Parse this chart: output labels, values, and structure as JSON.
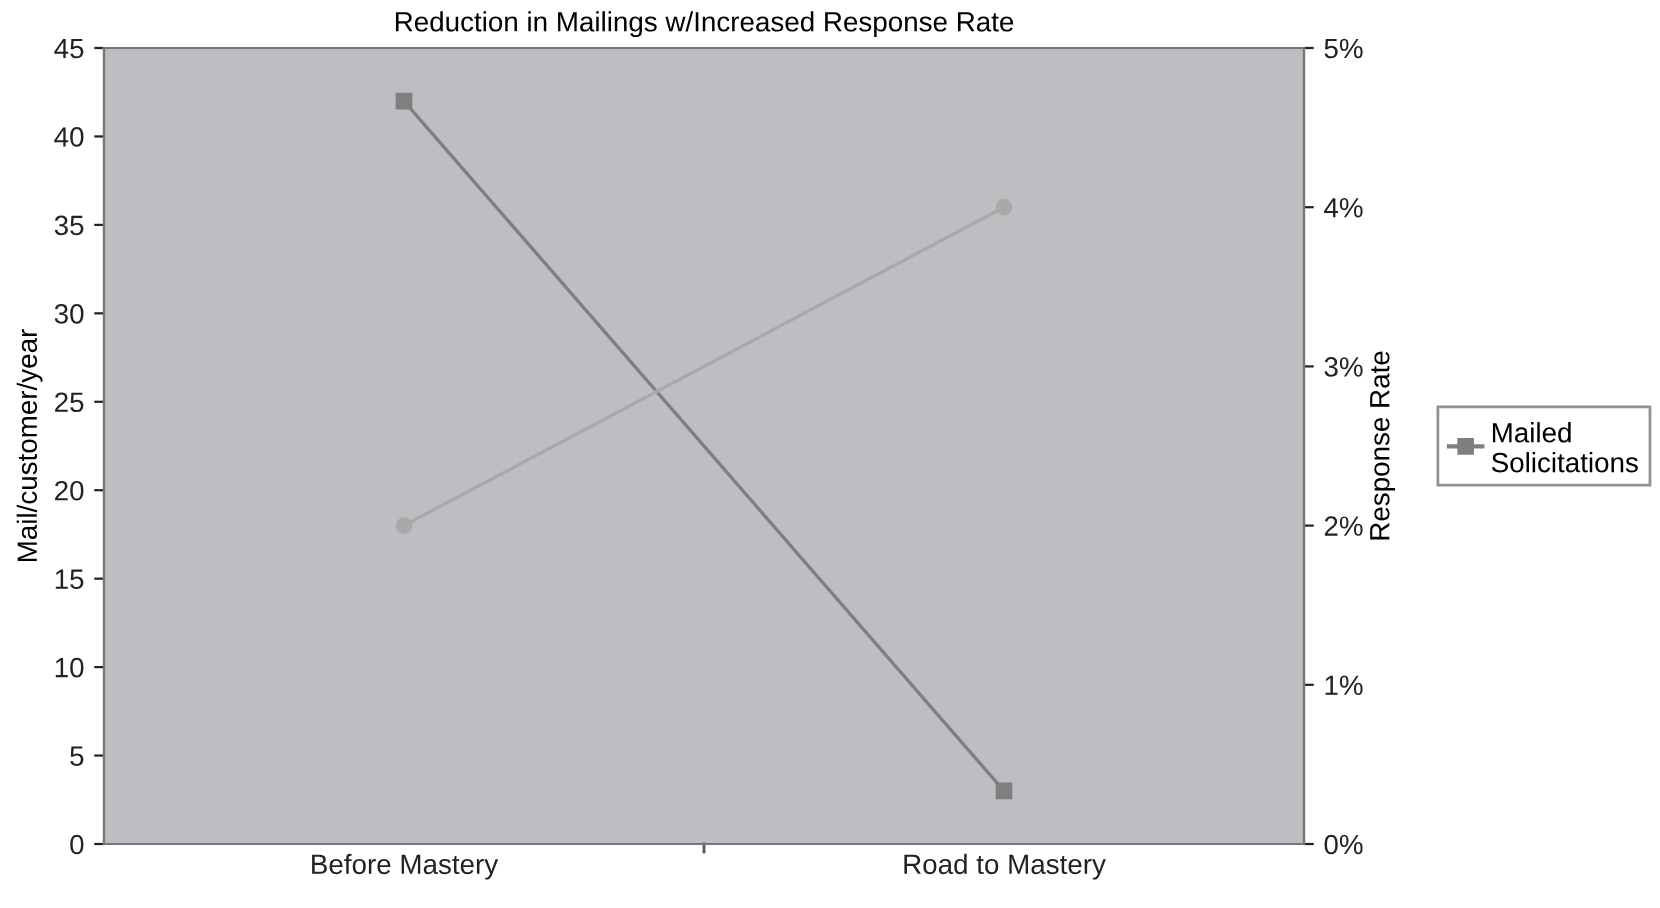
{
  "chart_data": {
    "type": "line",
    "title": "Reduction in Mailings w/Increased Response Rate",
    "categories": [
      "Before Mastery",
      "Road to Mastery"
    ],
    "ylabel": "Mail/customer/year",
    "y2label": "Response Rate",
    "series": [
      {
        "name": "Mailed Solicitations",
        "color": "#7f7f7f",
        "values": [
          42,
          3
        ],
        "marker": "square"
      },
      {
        "color": "#a9a9a9",
        "values": [
          2,
          4
        ],
        "axis": "y2",
        "marker": "circle"
      }
    ],
    "ylim": [
      0,
      45
    ],
    "yticks": [
      0,
      5,
      10,
      15,
      20,
      25,
      30,
      35,
      40,
      45
    ],
    "y2lim": [
      0,
      5
    ],
    "y2ticks": [
      {
        "value": 0,
        "label": "0%"
      },
      {
        "value": 1,
        "label": "1%"
      },
      {
        "value": 2,
        "label": "2%"
      },
      {
        "value": 3,
        "label": "3%"
      },
      {
        "value": 4,
        "label": "4%"
      },
      {
        "value": 5,
        "label": "5%"
      }
    ],
    "grid": false,
    "legend": "right",
    "line_style": "solid"
  }
}
